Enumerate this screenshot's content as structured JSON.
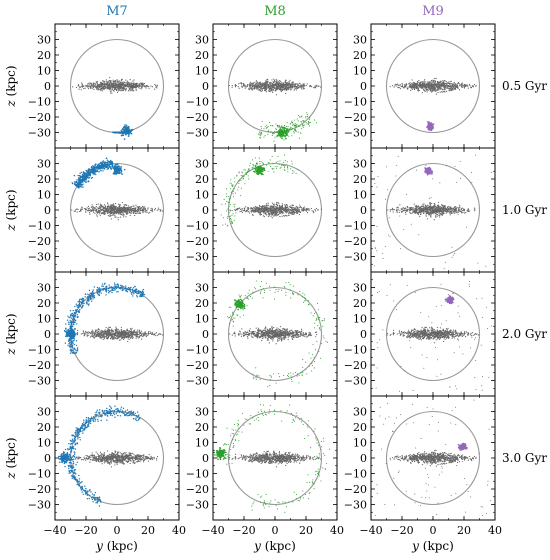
{
  "chart_data": {
    "type": "scatter",
    "columns": [
      {
        "title": "M7",
        "color": "#1f77b4"
      },
      {
        "title": "M8",
        "color": "#2ca02c"
      },
      {
        "title": "M9",
        "color": "#9467bd"
      }
    ],
    "rows": [
      "0.5 Gyr",
      "1.0 Gyr",
      "2.0 Gyr",
      "3.0 Gyr"
    ],
    "xlabel": "y (kpc)",
    "ylabel": "z (kpc)",
    "xlim": [
      -40,
      40
    ],
    "ylim": [
      -40,
      40
    ],
    "xticks": [
      -40,
      -20,
      0,
      20,
      40
    ],
    "xtick_labels": [
      "−40",
      "−20",
      "0",
      "20",
      "40"
    ],
    "yticks": [
      30,
      20,
      10,
      0,
      -10,
      -20,
      -30
    ],
    "ytick_labels": [
      "30",
      "20",
      "10",
      "0",
      "−10",
      "−20",
      "−30"
    ],
    "circle_radius": 30,
    "disk_color": "#666666",
    "disk": {
      "half_length": 24,
      "half_thickness": 3
    },
    "satellites": [
      [
        {
          "x": 6,
          "z": -29,
          "arc": [
            -95,
            -70
          ]
        },
        {
          "x": 0,
          "z": 26,
          "arc": [
            95,
            150
          ]
        },
        {
          "x": -30,
          "z": 0,
          "arc": [
            55,
            205
          ]
        },
        {
          "x": -34,
          "z": 0,
          "arc": [
            60,
            250
          ]
        }
      ],
      [
        {
          "x": 5,
          "z": -30,
          "arc": [
            -110,
            -40
          ]
        },
        {
          "x": -10,
          "z": 26,
          "arc": [
            60,
            200
          ]
        },
        {
          "x": -23,
          "z": 19,
          "arc": [
            -120,
            170
          ]
        },
        {
          "x": -35,
          "z": 3,
          "arc": [
            -120,
            190
          ]
        }
      ],
      [
        {
          "x": -2,
          "z": -26,
          "arc": null
        },
        {
          "x": -3,
          "z": 25,
          "arc": null
        },
        {
          "x": 11,
          "z": 22,
          "arc": null
        },
        {
          "x": 19,
          "z": 7,
          "arc": null
        }
      ]
    ]
  }
}
